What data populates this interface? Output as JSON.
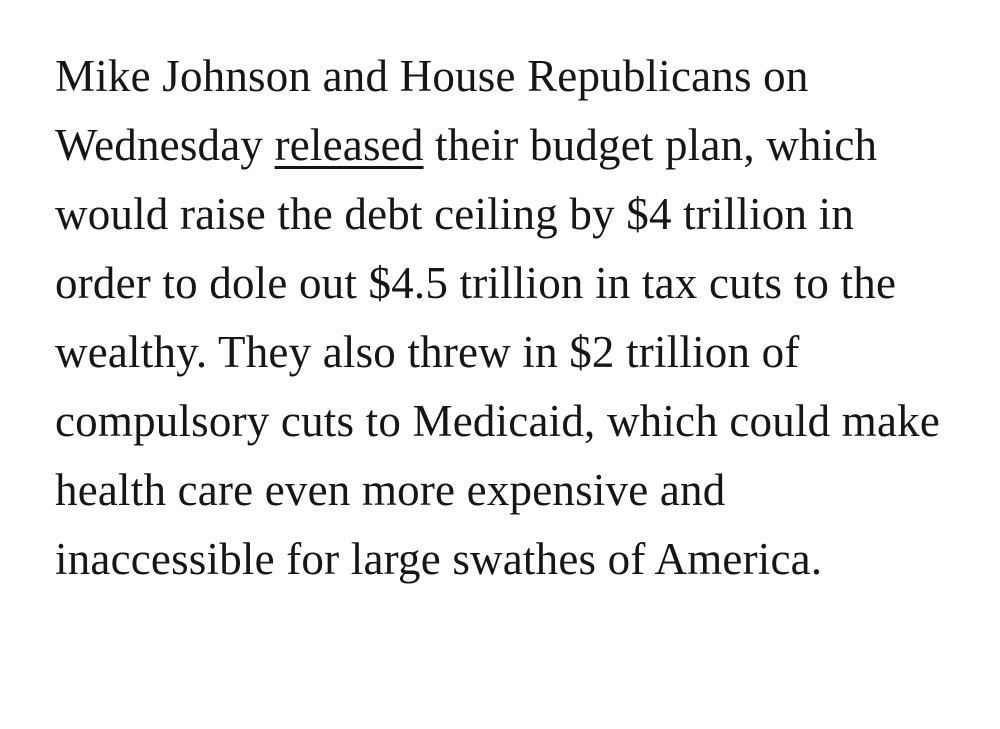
{
  "article": {
    "colors": {
      "background": "#ffffff",
      "text": "#161616"
    },
    "paragraph": {
      "text_before_link": "Mike Johnson and House Republicans on Wednesday ",
      "link_text": "released",
      "text_after_link": " their budget plan, which would raise the debt ceiling by $4 trillion in order to dole out $4.5 trillion in tax cuts to the wealthy. They also threw in $2 trillion of compulsory cuts to Medicaid, which could make health care even more expensive and inaccessible for large swathes of America."
    }
  }
}
